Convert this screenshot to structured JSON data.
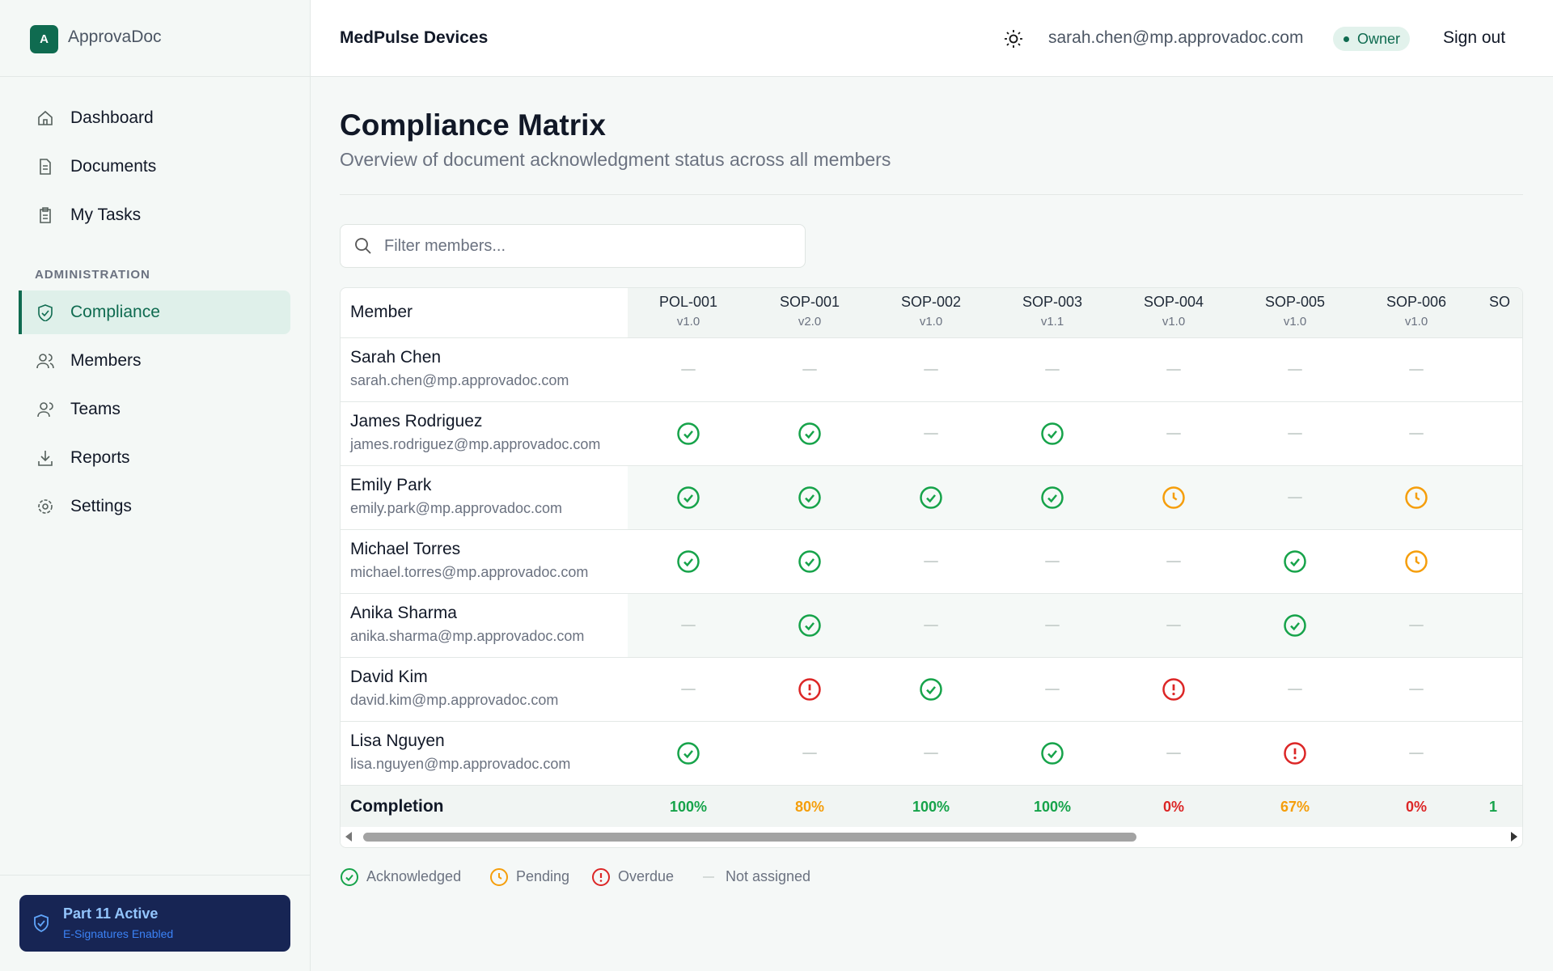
{
  "sidebar": {
    "logo_letter": "A",
    "brand": "ApprovaDoc",
    "nav": [
      "Dashboard",
      "Documents",
      "My Tasks"
    ],
    "section_label": "ADMINISTRATION",
    "admin_nav": [
      "Compliance",
      "Members",
      "Teams",
      "Reports",
      "Settings"
    ],
    "active": "Compliance",
    "badge": {
      "title": "Part 11 Active",
      "subtitle": "E-Signatures Enabled"
    }
  },
  "header": {
    "org": "MedPulse Devices",
    "email": "sarah.chen@mp.approvadoc.com",
    "role": "Owner",
    "sign_out": "Sign out"
  },
  "page": {
    "title": "Compliance Matrix",
    "subtitle": "Overview of document acknowledgment status across all members",
    "filter_placeholder": "Filter members..."
  },
  "table": {
    "member_header": "Member",
    "completion_label": "Completion",
    "columns": [
      {
        "code": "POL-001",
        "version": "v1.0",
        "completion": "100%"
      },
      {
        "code": "SOP-001",
        "version": "v2.0",
        "completion": "80%"
      },
      {
        "code": "SOP-002",
        "version": "v1.0",
        "completion": "100%"
      },
      {
        "code": "SOP-003",
        "version": "v1.1",
        "completion": "100%"
      },
      {
        "code": "SOP-004",
        "version": "v1.0",
        "completion": "0%"
      },
      {
        "code": "SOP-005",
        "version": "v1.0",
        "completion": "67%"
      },
      {
        "code": "SOP-006",
        "version": "v1.0",
        "completion": "0%"
      }
    ],
    "truncated_column": {
      "code": "SO",
      "completion": "1"
    },
    "rows": [
      {
        "name": "Sarah Chen",
        "email": "sarah.chen@mp.approvadoc.com",
        "statuses": [
          "none",
          "none",
          "none",
          "none",
          "none",
          "none",
          "none"
        ]
      },
      {
        "name": "James Rodriguez",
        "email": "james.rodriguez@mp.approvadoc.com",
        "statuses": [
          "acknowledged",
          "acknowledged",
          "none",
          "acknowledged",
          "none",
          "none",
          "none"
        ]
      },
      {
        "name": "Emily Park",
        "email": "emily.park@mp.approvadoc.com",
        "statuses": [
          "acknowledged",
          "acknowledged",
          "acknowledged",
          "acknowledged",
          "pending",
          "none",
          "pending"
        ]
      },
      {
        "name": "Michael Torres",
        "email": "michael.torres@mp.approvadoc.com",
        "statuses": [
          "acknowledged",
          "acknowledged",
          "none",
          "none",
          "none",
          "acknowledged",
          "pending"
        ]
      },
      {
        "name": "Anika Sharma",
        "email": "anika.sharma@mp.approvadoc.com",
        "statuses": [
          "none",
          "acknowledged",
          "none",
          "none",
          "none",
          "acknowledged",
          "none"
        ]
      },
      {
        "name": "David Kim",
        "email": "david.kim@mp.approvadoc.com",
        "statuses": [
          "none",
          "overdue",
          "acknowledged",
          "none",
          "overdue",
          "none",
          "none"
        ]
      },
      {
        "name": "Lisa Nguyen",
        "email": "lisa.nguyen@mp.approvadoc.com",
        "statuses": [
          "acknowledged",
          "none",
          "none",
          "acknowledged",
          "none",
          "overdue",
          "none"
        ]
      }
    ]
  },
  "legend": [
    {
      "status": "acknowledged",
      "label": "Acknowledged"
    },
    {
      "status": "pending",
      "label": "Pending"
    },
    {
      "status": "overdue",
      "label": "Overdue"
    },
    {
      "status": "none",
      "label": "Not assigned"
    }
  ]
}
